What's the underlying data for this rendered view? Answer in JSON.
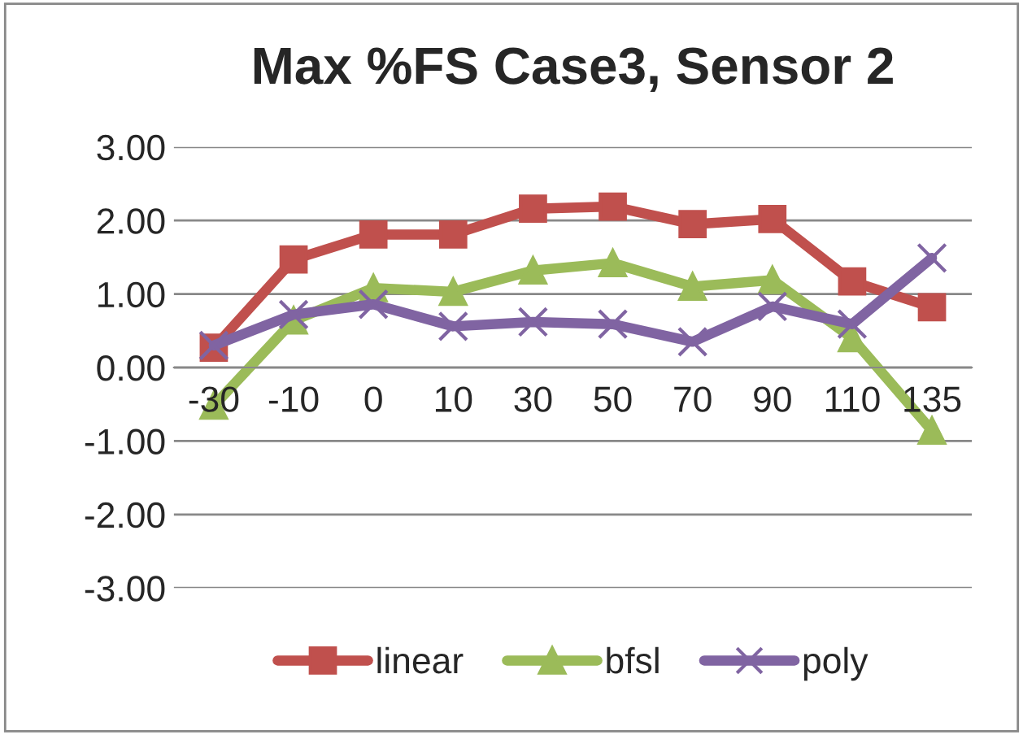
{
  "chart_data": {
    "type": "line",
    "title": "Max %FS Case3, Sensor 2",
    "categories": [
      "-30",
      "-10",
      "0",
      "10",
      "30",
      "50",
      "70",
      "90",
      "110",
      "135"
    ],
    "series": [
      {
        "name": "linear",
        "color": "#c0504d",
        "marker": "square",
        "values": [
          0.27,
          1.47,
          1.81,
          1.81,
          2.16,
          2.19,
          1.95,
          2.02,
          1.17,
          0.82
        ]
      },
      {
        "name": "bfsl",
        "color": "#9bbb59",
        "marker": "triangle",
        "values": [
          -0.52,
          0.64,
          1.08,
          1.03,
          1.32,
          1.42,
          1.1,
          1.19,
          0.4,
          -0.86
        ]
      },
      {
        "name": "poly",
        "color": "#8064a2",
        "marker": "cross",
        "values": [
          0.3,
          0.72,
          0.86,
          0.56,
          0.62,
          0.59,
          0.35,
          0.83,
          0.59,
          1.49
        ]
      }
    ],
    "ylim": [
      -3,
      3
    ],
    "yticks": [
      {
        "value": -3,
        "label": "-3.00"
      },
      {
        "value": -2,
        "label": "-2.00"
      },
      {
        "value": -1,
        "label": "-1.00"
      },
      {
        "value": 0,
        "label": "0.00"
      },
      {
        "value": 1,
        "label": "1.00"
      },
      {
        "value": 2,
        "label": "2.00"
      },
      {
        "value": 3,
        "label": "3.00"
      }
    ],
    "grid": "y",
    "legend": "bottom",
    "line_style": "solid"
  }
}
